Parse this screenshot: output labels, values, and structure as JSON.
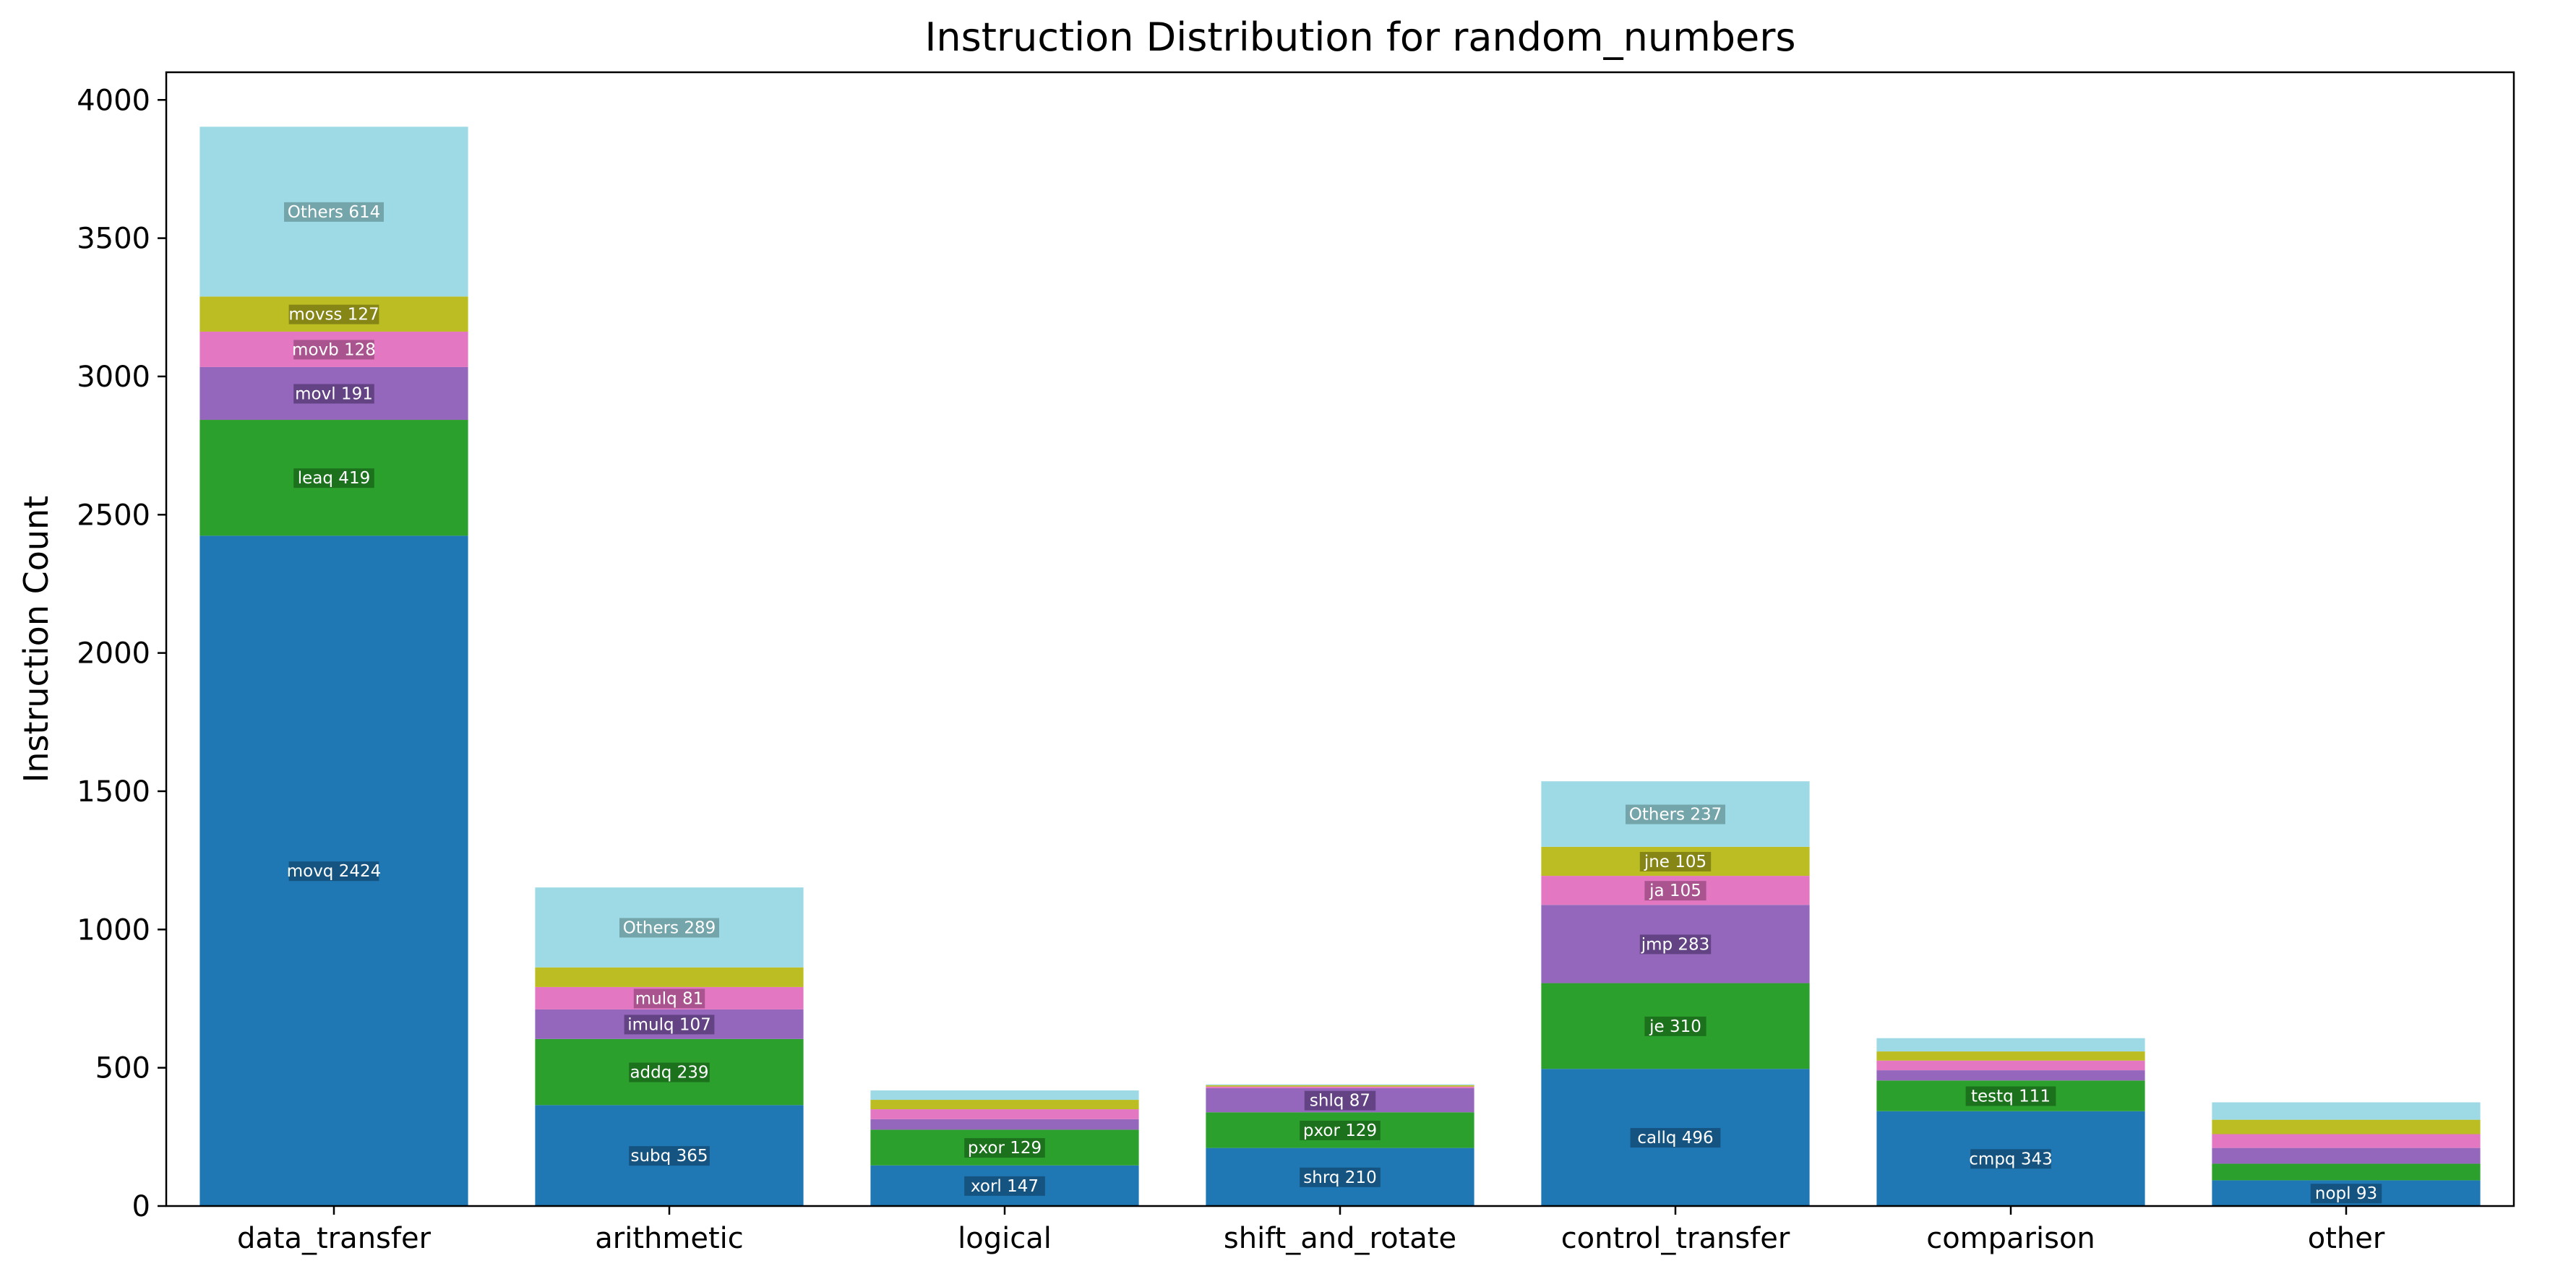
{
  "chart_data": {
    "type": "bar",
    "stacked": true,
    "title": "Instruction Distribution for random_numbers",
    "xlabel": "",
    "ylabel": "Instruction Count",
    "ylim": [
      0,
      4100
    ],
    "yticks": [
      0,
      500,
      1000,
      1500,
      2000,
      2500,
      3000,
      3500,
      4000
    ],
    "grid": false,
    "legend": "none",
    "layer_colors": [
      "#1f77b4",
      "#2ca02c",
      "#9467bd",
      "#e377c2",
      "#bcbd22",
      "#9edae5"
    ],
    "label_bg_colors": [
      "#144e78",
      "#1a6a1a",
      "#5b3d7a",
      "#a04d86",
      "#7c7d14",
      "#6b9ba1"
    ],
    "categories": [
      "data_transfer",
      "arithmetic",
      "logical",
      "shift_and_rotate",
      "control_transfer",
      "comparison",
      "other"
    ],
    "stacks": [
      {
        "category": "data_transfer",
        "segments": [
          {
            "label": "movq 2424",
            "value": 2424
          },
          {
            "label": "leaq 419",
            "value": 419
          },
          {
            "label": "movl 191",
            "value": 191
          },
          {
            "label": "movb 128",
            "value": 128
          },
          {
            "label": "movss 127",
            "value": 127
          },
          {
            "label": "Others 614",
            "value": 614
          }
        ]
      },
      {
        "category": "arithmetic",
        "segments": [
          {
            "label": "subq 365",
            "value": 365
          },
          {
            "label": "addq 239",
            "value": 239
          },
          {
            "label": "imulq 107",
            "value": 107
          },
          {
            "label": "mulq 81",
            "value": 81
          },
          {
            "label": "",
            "value": 71
          },
          {
            "label": "Others 289",
            "value": 289
          }
        ]
      },
      {
        "category": "logical",
        "segments": [
          {
            "label": "xorl 147",
            "value": 147
          },
          {
            "label": "pxor 129",
            "value": 129
          },
          {
            "label": "",
            "value": 38
          },
          {
            "label": "",
            "value": 36
          },
          {
            "label": "",
            "value": 34
          },
          {
            "label": "",
            "value": 34
          }
        ]
      },
      {
        "category": "shift_and_rotate",
        "segments": [
          {
            "label": "shrq 210",
            "value": 210
          },
          {
            "label": "pxor 129",
            "value": 129
          },
          {
            "label": "shlq 87",
            "value": 87
          },
          {
            "label": "",
            "value": 6
          },
          {
            "label": "",
            "value": 5
          },
          {
            "label": "",
            "value": 3
          }
        ]
      },
      {
        "category": "control_transfer",
        "segments": [
          {
            "label": "callq 496",
            "value": 496
          },
          {
            "label": "je 310",
            "value": 310
          },
          {
            "label": "jmp 283",
            "value": 283
          },
          {
            "label": "ja 105",
            "value": 105
          },
          {
            "label": "jne 105",
            "value": 105
          },
          {
            "label": "Others 237",
            "value": 237
          }
        ]
      },
      {
        "category": "comparison",
        "segments": [
          {
            "label": "cmpq 343",
            "value": 343
          },
          {
            "label": "testq 111",
            "value": 111
          },
          {
            "label": "",
            "value": 37
          },
          {
            "label": "",
            "value": 35
          },
          {
            "label": "",
            "value": 33
          },
          {
            "label": "",
            "value": 48
          }
        ]
      },
      {
        "category": "other",
        "segments": [
          {
            "label": "nopl 93",
            "value": 93
          },
          {
            "label": "",
            "value": 60
          },
          {
            "label": "",
            "value": 57
          },
          {
            "label": "",
            "value": 50
          },
          {
            "label": "",
            "value": 52
          },
          {
            "label": "",
            "value": 63
          }
        ]
      }
    ]
  }
}
